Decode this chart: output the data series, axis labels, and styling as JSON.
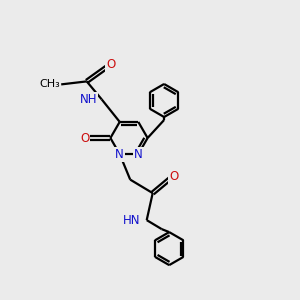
{
  "background_color": "#ebebeb",
  "bond_color": "#000000",
  "nitrogen_color": "#1010cc",
  "oxygen_color": "#cc1010",
  "lw": 1.6,
  "dbo": 0.055,
  "fs": 8.5,
  "xlim": [
    0,
    10
  ],
  "ylim": [
    0,
    10
  ]
}
